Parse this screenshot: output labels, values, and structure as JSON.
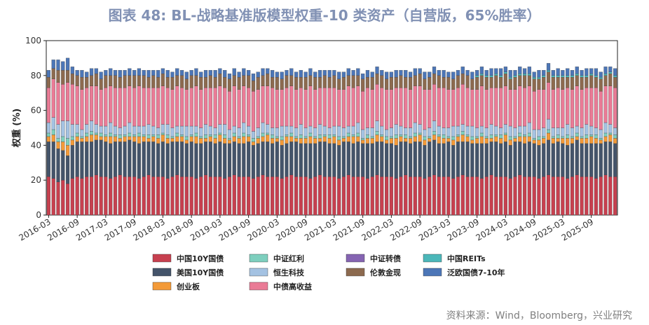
{
  "header": {
    "title": "图表 48: BL-战略基准版模型权重-10 类资产（自营版，65%胜率）"
  },
  "footer": {
    "source": "资料来源：Wind，Bloomberg，兴业研究"
  },
  "chart_data": {
    "type": "bar",
    "stacked": true,
    "title": "BL-战略基准版模型权重-10 类资产（自营版，65%胜率）",
    "ylabel": "权重 (%)",
    "xlabel": "",
    "ylim": [
      0,
      100
    ],
    "yticks": [
      0,
      20,
      40,
      60,
      80,
      100
    ],
    "x_tick_labels": [
      "2016-03",
      "2016-09",
      "2017-03",
      "2017-09",
      "2018-03",
      "2018-09",
      "2019-03",
      "2019-09",
      "2020-03",
      "2020-09",
      "2021-03",
      "2021-09",
      "2022-03",
      "2022-09",
      "2023-03",
      "2023-09",
      "2024-03",
      "2024-09",
      "2025-03",
      "2025-09"
    ],
    "legend_position": "bottom",
    "bars_per_tick": 6,
    "series": [
      {
        "name": "中国10Y国债",
        "color": "#c7404f",
        "values": [
          22,
          21,
          19,
          20,
          18,
          21,
          22,
          21,
          22,
          22,
          23,
          22,
          22,
          21,
          22,
          23,
          22,
          22,
          22,
          21,
          22,
          23,
          22,
          22,
          22,
          21,
          22,
          23,
          22,
          22,
          22,
          21,
          22,
          23,
          22,
          22,
          22,
          21,
          22,
          23,
          22,
          22,
          22,
          21,
          22,
          23,
          22,
          22,
          22,
          21,
          22,
          23,
          22,
          22,
          22,
          21,
          22,
          23,
          22,
          22,
          22,
          21,
          22,
          23,
          22,
          22,
          22,
          21,
          22,
          23,
          22,
          22,
          22,
          21,
          22,
          23,
          22,
          22,
          22,
          21,
          22,
          23,
          22,
          22,
          22,
          21,
          22,
          23,
          22,
          22,
          22,
          21,
          22,
          23,
          22,
          22,
          22,
          21,
          22,
          23,
          22,
          22,
          22,
          21,
          22,
          23,
          22,
          22,
          22,
          21,
          22,
          23,
          22,
          22,
          22,
          21,
          22,
          23,
          22,
          22
        ]
      },
      {
        "name": "美国10Y国债",
        "color": "#44546a",
        "values": [
          20,
          21,
          19,
          17,
          16,
          19,
          20,
          21,
          20,
          20,
          20,
          21,
          20,
          20,
          20,
          19,
          20,
          21,
          20,
          20,
          20,
          19,
          20,
          19,
          20,
          20,
          20,
          19,
          20,
          19,
          20,
          20,
          19,
          19,
          20,
          19,
          20,
          20,
          19,
          19,
          19,
          19,
          20,
          19,
          19,
          19,
          20,
          19,
          20,
          19,
          19,
          19,
          20,
          19,
          19,
          20,
          19,
          19,
          20,
          19,
          19,
          19,
          20,
          19,
          19,
          20,
          19,
          20,
          19,
          19,
          20,
          19,
          19,
          19,
          20,
          19,
          19,
          20,
          20,
          19,
          20,
          20,
          19,
          19,
          20,
          19,
          20,
          19,
          20,
          19,
          19,
          20,
          19,
          19,
          20,
          19,
          20,
          19,
          20,
          19,
          19,
          20,
          19,
          19,
          19,
          20,
          19,
          20,
          19,
          19,
          19,
          20,
          19,
          19,
          19,
          20,
          19,
          19,
          20,
          19
        ]
      },
      {
        "name": "创业板",
        "color": "#f39a38",
        "values": [
          3,
          4,
          4,
          5,
          6,
          3,
          3,
          2,
          3,
          4,
          3,
          2,
          3,
          4,
          3,
          2,
          3,
          2,
          3,
          4,
          3,
          2,
          3,
          3,
          4,
          3,
          2,
          3,
          3,
          2,
          3,
          4,
          3,
          2,
          3,
          3,
          4,
          3,
          2,
          3,
          3,
          4,
          3,
          2,
          3,
          3,
          4,
          3,
          2,
          3,
          4,
          3,
          2,
          3,
          3,
          4,
          3,
          2,
          3,
          3,
          4,
          3,
          2,
          3,
          4,
          3,
          2,
          3,
          3,
          4,
          3,
          2,
          3,
          4,
          3,
          2,
          3,
          3,
          4,
          3,
          2,
          3,
          4,
          3,
          2,
          3,
          3,
          4,
          3,
          2,
          3,
          4,
          3,
          2,
          3,
          3,
          4,
          3,
          2,
          3,
          4,
          3,
          2,
          3,
          3,
          4,
          3,
          2,
          3,
          4,
          3,
          2,
          3,
          3,
          4,
          3,
          2,
          3,
          4,
          3
        ]
      },
      {
        "name": "中证红利",
        "color": "#7ecfbe",
        "values": [
          2,
          3,
          2,
          3,
          4,
          2,
          2,
          1,
          2,
          2,
          1,
          2,
          1,
          2,
          1,
          2,
          1,
          2,
          1,
          2,
          1,
          2,
          1,
          2,
          1,
          2,
          1,
          2,
          1,
          2,
          1,
          2,
          1,
          2,
          1,
          2,
          1,
          2,
          1,
          2,
          1,
          2,
          1,
          2,
          1,
          2,
          1,
          2,
          1,
          2,
          1,
          2,
          1,
          2,
          1,
          2,
          1,
          2,
          1,
          2,
          1,
          2,
          1,
          2,
          1,
          2,
          1,
          2,
          1,
          2,
          1,
          2,
          1,
          2,
          1,
          2,
          1,
          2,
          1,
          2,
          1,
          2,
          1,
          2,
          1,
          2,
          1,
          2,
          1,
          2,
          1,
          2,
          1,
          2,
          1,
          2,
          1,
          2,
          1,
          2,
          1,
          2,
          1,
          2,
          1,
          2,
          1,
          2,
          1,
          2,
          1,
          2,
          1,
          2,
          1,
          2,
          1,
          2,
          1,
          2
        ]
      },
      {
        "name": "恒生科技",
        "color": "#a4c2e2",
        "values": [
          6,
          7,
          8,
          9,
          10,
          7,
          5,
          4,
          5,
          6,
          5,
          4,
          5,
          6,
          5,
          4,
          5,
          6,
          5,
          4,
          5,
          6,
          5,
          4,
          5,
          6,
          5,
          4,
          5,
          6,
          5,
          4,
          5,
          6,
          5,
          4,
          5,
          6,
          5,
          4,
          5,
          6,
          5,
          4,
          5,
          6,
          5,
          4,
          5,
          6,
          5,
          4,
          5,
          6,
          5,
          4,
          5,
          6,
          5,
          4,
          5,
          6,
          5,
          4,
          5,
          6,
          5,
          4,
          5,
          6,
          5,
          4,
          5,
          6,
          5,
          4,
          5,
          6,
          5,
          4,
          5,
          6,
          5,
          4,
          5,
          6,
          5,
          4,
          5,
          6,
          5,
          4,
          5,
          6,
          5,
          4,
          5,
          6,
          5,
          4,
          5,
          6,
          5,
          4,
          5,
          6,
          5,
          4,
          5,
          6,
          5,
          4,
          5,
          6,
          5,
          4,
          5,
          6,
          5,
          4
        ]
      },
      {
        "name": "中债高收益",
        "color": "#ea7b96",
        "values": [
          20,
          22,
          24,
          21,
          22,
          23,
          22,
          23,
          21,
          20,
          22,
          21,
          22,
          21,
          22,
          23,
          22,
          21,
          22,
          23,
          22,
          21,
          22,
          23,
          22,
          21,
          22,
          23,
          22,
          21,
          22,
          23,
          22,
          21,
          22,
          23,
          22,
          21,
          22,
          23,
          22,
          21,
          22,
          23,
          22,
          21,
          22,
          23,
          22,
          21,
          22,
          23,
          22,
          21,
          22,
          23,
          22,
          21,
          22,
          23,
          22,
          21,
          22,
          23,
          22,
          21,
          22,
          23,
          22,
          21,
          22,
          23,
          22,
          21,
          22,
          23,
          22,
          21,
          22,
          23,
          22,
          21,
          22,
          23,
          22,
          21,
          22,
          23,
          22,
          21,
          22,
          23,
          22,
          21,
          22,
          23,
          22,
          21,
          22,
          23,
          22,
          21,
          22,
          23,
          22,
          21,
          22,
          23,
          22,
          21,
          22,
          23,
          22,
          21,
          22,
          23,
          22,
          21,
          22,
          23
        ]
      },
      {
        "name": "中证转债",
        "color": "#8564b2",
        "values": [
          0,
          0,
          0,
          0,
          0,
          0,
          0,
          0,
          0,
          0,
          0,
          0,
          0,
          0,
          0,
          0,
          0,
          0,
          0,
          0,
          0,
          0,
          0,
          0,
          0,
          0,
          0,
          0,
          0,
          0,
          0,
          0,
          0,
          0,
          0,
          0,
          0,
          0,
          0,
          0,
          0,
          0,
          0,
          0,
          0,
          0,
          0,
          0,
          0,
          0,
          0,
          0,
          0,
          0,
          0,
          0,
          0,
          0,
          0,
          0,
          0,
          0,
          0,
          0,
          0,
          0,
          0,
          0,
          0,
          0,
          0,
          0,
          0,
          0,
          0,
          0,
          0,
          0,
          0,
          0,
          0,
          0,
          0,
          0,
          0,
          0,
          0,
          0,
          0,
          0,
          0,
          0,
          0,
          0,
          0,
          0,
          0,
          0,
          0,
          0,
          0,
          0,
          0,
          0,
          0,
          0,
          0,
          0,
          0,
          0,
          0,
          0,
          0,
          0,
          0,
          0,
          0,
          0,
          0,
          0
        ]
      },
      {
        "name": "伦敦金现",
        "color": "#8c6a4f",
        "values": [
          6,
          6,
          7,
          8,
          7,
          6,
          6,
          7,
          6,
          6,
          7,
          6,
          7,
          6,
          7,
          6,
          7,
          6,
          7,
          6,
          7,
          6,
          7,
          6,
          7,
          6,
          7,
          6,
          7,
          6,
          7,
          6,
          7,
          6,
          7,
          6,
          7,
          6,
          7,
          6,
          7,
          6,
          7,
          6,
          7,
          6,
          7,
          6,
          7,
          6,
          7,
          6,
          7,
          6,
          7,
          6,
          7,
          6,
          7,
          6,
          7,
          6,
          7,
          6,
          7,
          6,
          7,
          6,
          7,
          6,
          7,
          6,
          7,
          6,
          7,
          6,
          7,
          6,
          7,
          6,
          7,
          6,
          7,
          6,
          7,
          6,
          7,
          6,
          7,
          6,
          7,
          6,
          7,
          6,
          7,
          6,
          7,
          6,
          7,
          6,
          7,
          6,
          7,
          6,
          7,
          6,
          7,
          6,
          7,
          6,
          7,
          6,
          7,
          6,
          7,
          6,
          7,
          6,
          7,
          6
        ]
      },
      {
        "name": "中国REITs",
        "color": "#4bb7b9",
        "values": [
          0,
          0,
          0,
          0,
          0,
          0,
          0,
          0,
          0,
          0,
          0,
          0,
          0,
          0,
          0,
          0,
          0,
          0,
          0,
          0,
          0,
          0,
          0,
          0,
          0,
          0,
          0,
          0,
          0,
          0,
          0,
          0,
          0,
          0,
          0,
          0,
          0,
          0,
          0,
          0,
          0,
          0,
          0,
          0,
          0,
          0,
          0,
          0,
          0,
          0,
          0,
          0,
          0,
          0,
          0,
          0,
          0,
          0,
          0,
          0,
          0,
          0,
          0,
          0,
          0,
          0,
          0,
          0,
          0,
          0,
          0,
          0,
          0,
          0,
          0,
          0,
          0,
          0,
          0,
          0,
          0,
          0,
          0,
          0,
          0,
          0,
          0,
          0,
          0,
          0,
          1,
          1,
          1,
          1,
          1,
          1,
          1,
          1,
          1,
          1,
          1,
          1,
          1,
          1,
          1,
          1,
          1,
          1,
          1,
          1,
          1,
          1,
          1,
          1,
          1,
          1,
          1,
          1,
          1,
          1
        ]
      },
      {
        "name": "泛欧国债7-10年",
        "color": "#4c76b7",
        "values": [
          4,
          5,
          6,
          5,
          7,
          4,
          3,
          4,
          3,
          4,
          3,
          4,
          3,
          4,
          3,
          4,
          3,
          4,
          3,
          4,
          3,
          4,
          3,
          4,
          3,
          4,
          3,
          4,
          3,
          4,
          3,
          4,
          3,
          4,
          3,
          4,
          3,
          4,
          3,
          4,
          3,
          4,
          3,
          4,
          3,
          4,
          3,
          4,
          3,
          4,
          3,
          4,
          3,
          4,
          3,
          4,
          3,
          4,
          3,
          4,
          3,
          4,
          3,
          4,
          3,
          4,
          3,
          4,
          3,
          4,
          3,
          4,
          3,
          4,
          3,
          4,
          3,
          4,
          3,
          4,
          3,
          4,
          3,
          4,
          3,
          4,
          3,
          4,
          3,
          4,
          3,
          4,
          3,
          4,
          3,
          4,
          3,
          4,
          3,
          4,
          3,
          4,
          3,
          4,
          3,
          4,
          3,
          4,
          3,
          4,
          3,
          4,
          3,
          4,
          3,
          4,
          3,
          4,
          3,
          4
        ]
      }
    ]
  }
}
